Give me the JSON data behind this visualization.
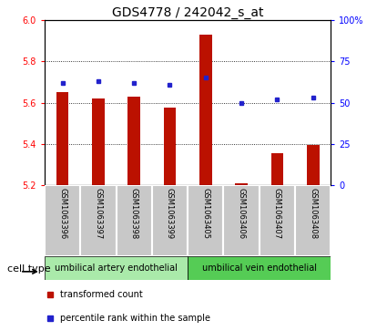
{
  "title": "GDS4778 / 242042_s_at",
  "samples": [
    "GSM1063396",
    "GSM1063397",
    "GSM1063398",
    "GSM1063399",
    "GSM1063405",
    "GSM1063406",
    "GSM1063407",
    "GSM1063408"
  ],
  "bar_values": [
    5.65,
    5.62,
    5.63,
    5.575,
    5.93,
    5.21,
    5.355,
    5.395
  ],
  "bar_base": 5.2,
  "percentile_values": [
    62,
    63,
    62,
    61,
    65,
    50,
    52,
    53
  ],
  "ylim_left": [
    5.2,
    6.0
  ],
  "ylim_right": [
    0,
    100
  ],
  "yticks_left": [
    5.2,
    5.4,
    5.6,
    5.8,
    6.0
  ],
  "yticks_right": [
    0,
    25,
    50,
    75,
    100
  ],
  "bar_color": "#bb1100",
  "dot_color": "#2222cc",
  "bg_color": "#ffffff",
  "cell_type_groups": [
    {
      "label": "umbilical artery endothelial",
      "start": 0,
      "end": 3,
      "color": "#aaeaaa"
    },
    {
      "label": "umbilical vein endothelial",
      "start": 4,
      "end": 7,
      "color": "#55cc55"
    }
  ],
  "cell_type_label": "cell type",
  "legend_items": [
    {
      "label": "transformed count",
      "color": "#bb1100"
    },
    {
      "label": "percentile rank within the sample",
      "color": "#2222cc"
    }
  ],
  "sample_box_color": "#c8c8c8",
  "title_fontsize": 10,
  "tick_fontsize": 7,
  "bar_width": 0.35
}
